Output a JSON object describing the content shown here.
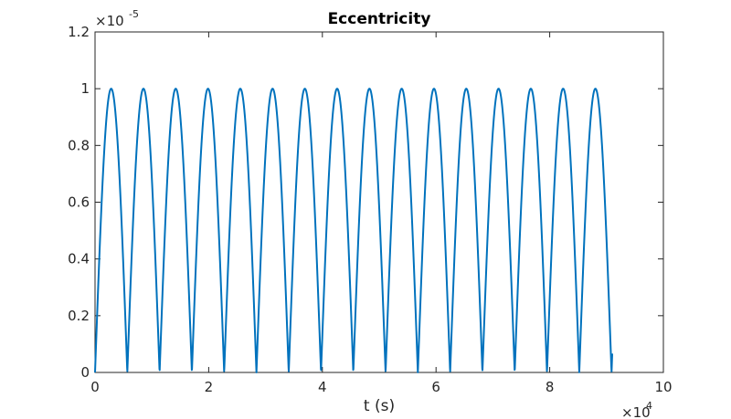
{
  "chart_data": {
    "type": "line",
    "title": "Eccentricity",
    "xlabel": "t (s)",
    "ylabel": "",
    "xlim": [
      0,
      100000
    ],
    "ylim": [
      0,
      1.2e-05
    ],
    "x_ticks": [
      "0",
      "2",
      "4",
      "6",
      "8",
      "10"
    ],
    "y_ticks": [
      "0",
      "0.2",
      "0.4",
      "0.6",
      "0.8",
      "1",
      "1.2"
    ],
    "x_exponent": {
      "base": "×10",
      "power": "4"
    },
    "y_exponent": {
      "base": "×10",
      "power": "-5"
    },
    "grid": false,
    "line_color": "#0072bd",
    "series": [
      {
        "shape": "abs-sine",
        "amplitude": 1e-05,
        "period": 5680,
        "x_start": 0,
        "x_end": 91000,
        "peak_x": [
          2840,
          8520,
          14200,
          19880,
          25560,
          31240,
          36920,
          42600,
          48280,
          53960,
          59640,
          65320,
          71000,
          76680,
          82360,
          88040
        ],
        "zero_x": [
          0,
          5680,
          11360,
          17040,
          22720,
          28400,
          34080,
          39760,
          45440,
          51120,
          56800,
          62480,
          68160,
          73840,
          79520,
          85200,
          91000
        ]
      }
    ]
  }
}
